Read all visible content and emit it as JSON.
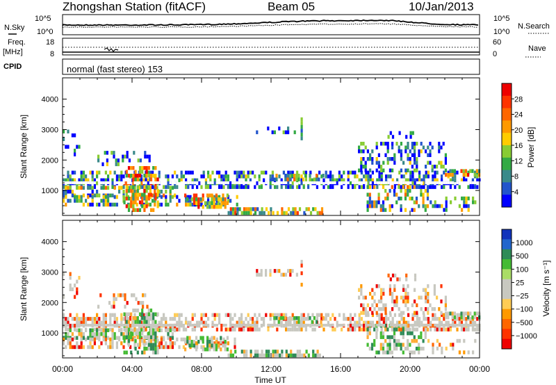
{
  "header": {
    "station": "Zhongshan Station (fitACF)",
    "beam": "Beam 05",
    "date": "10/Jan/2013"
  },
  "noise_panel": {
    "left_label": "N.Sky",
    "right_label": "N.Search",
    "y_top": "10^5",
    "y_bottom": "10^0"
  },
  "freq_panel": {
    "left_label_top": "Freq.",
    "left_label_bottom": "[MHz]",
    "right_label": "Nave",
    "left_top": "18",
    "left_bottom": "8",
    "right_top": "60",
    "right_bottom": "0"
  },
  "cpid": {
    "label": "CPID",
    "value": "normal (fast stereo) 153"
  },
  "chart_data": [
    {
      "type": "heatmap",
      "name": "power",
      "ylabel": "Slant Range [km]",
      "ylim": [
        180,
        4700
      ],
      "yticks": [
        "1000",
        "2000",
        "3000",
        "4000"
      ],
      "xlim_hours": [
        0,
        24
      ],
      "xticks": [
        "00:00",
        "04:00",
        "08:00",
        "12:00",
        "16:00",
        "20:00",
        "00:00"
      ],
      "colorbar": {
        "label": "Power [dB]",
        "ticks": [
          "4",
          "8",
          "12",
          "16",
          "20",
          "24",
          "28"
        ],
        "colors": [
          "#0000ff",
          "#2255cc",
          "#3a8a8a",
          "#33aa44",
          "#88cc33",
          "#ffcc00",
          "#ff9900",
          "#ff6600",
          "#ff3300",
          "#ee0000"
        ]
      }
    },
    {
      "type": "heatmap",
      "name": "velocity",
      "ylabel": "Slant Range [km]",
      "ylim": [
        180,
        4700
      ],
      "yticks": [
        "1000",
        "2000",
        "3000",
        "4000"
      ],
      "xlim_hours": [
        0,
        24
      ],
      "xticks": [
        "00:00",
        "04:00",
        "08:00",
        "12:00",
        "16:00",
        "20:00",
        "00:00"
      ],
      "xlabel": "Time UT",
      "colorbar": {
        "label": "Velocity [m s⁻¹]",
        "ticks": [
          "1000",
          "500",
          "100",
          "25",
          "−25",
          "−100",
          "−500",
          "−1000"
        ],
        "colors": [
          "#1133bb",
          "#2266cc",
          "#2e8b57",
          "#44bb33",
          "#aadd66",
          "#c8c8c0",
          "#c8c8c0",
          "#ffcc55",
          "#ff9900",
          "#ff6600",
          "#ff3300",
          "#ee0000"
        ]
      }
    }
  ]
}
